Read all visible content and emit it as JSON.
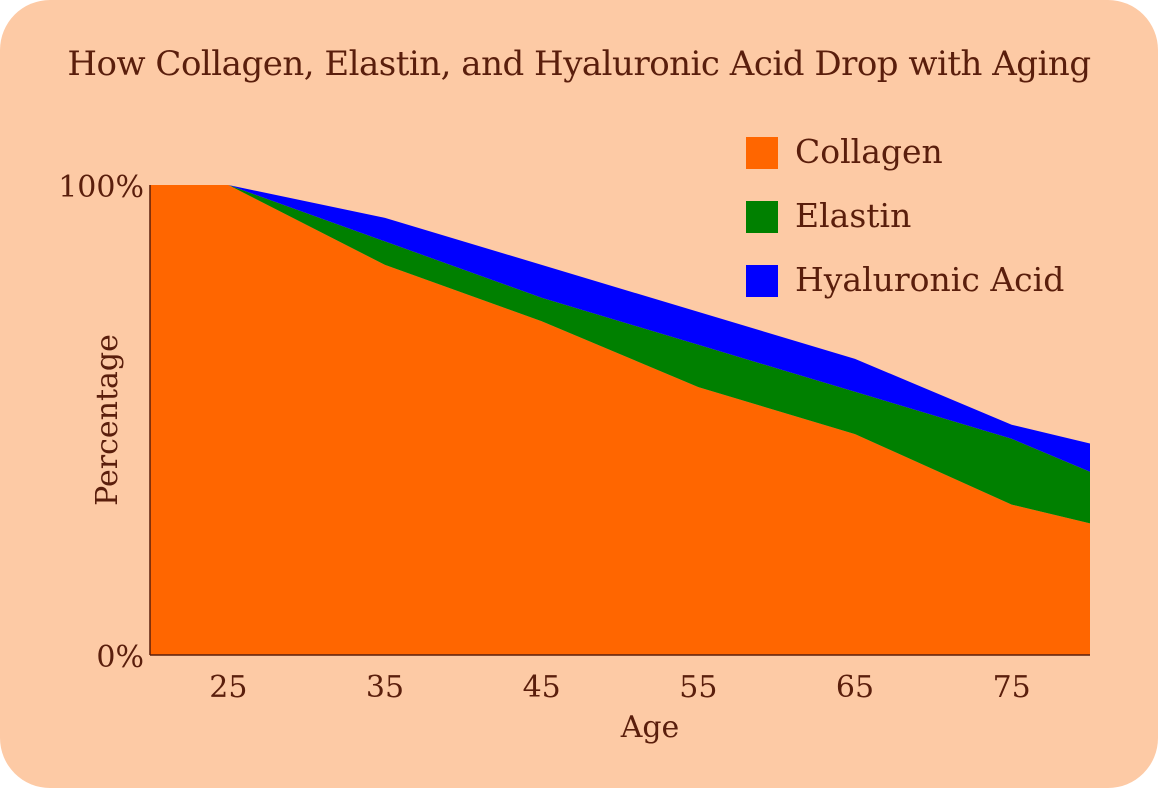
{
  "chart_data": {
    "type": "area",
    "stacked": true,
    "title": "How Collagen, Elastin, and Hyaluronic Acid Drop with Aging",
    "xlabel": "Age",
    "ylabel": "Percentage",
    "x": [
      20,
      25,
      35,
      45,
      55,
      65,
      75,
      80
    ],
    "xticks": [
      "25",
      "35",
      "45",
      "55",
      "65",
      "75"
    ],
    "xtick_values": [
      25,
      35,
      45,
      55,
      65,
      75
    ],
    "xlim": [
      20,
      80
    ],
    "ylim": [
      0,
      100
    ],
    "yticks": [
      "0%",
      "100%"
    ],
    "ytick_values": [
      0,
      100
    ],
    "series": [
      {
        "name": "Collagen",
        "color": "#ff6600",
        "values": [
          100,
          100,
          83,
          71,
          57,
          47,
          32,
          28
        ]
      },
      {
        "name": "Elastin",
        "color": "#008000",
        "values": [
          0,
          0,
          5,
          5,
          9,
          9,
          14,
          11
        ]
      },
      {
        "name": "Hyaluronic Acid",
        "color": "#0000ff",
        "values": [
          0,
          0,
          5,
          7,
          7,
          7,
          3,
          6
        ]
      }
    ],
    "legend_position": "top-right",
    "grid": false
  }
}
